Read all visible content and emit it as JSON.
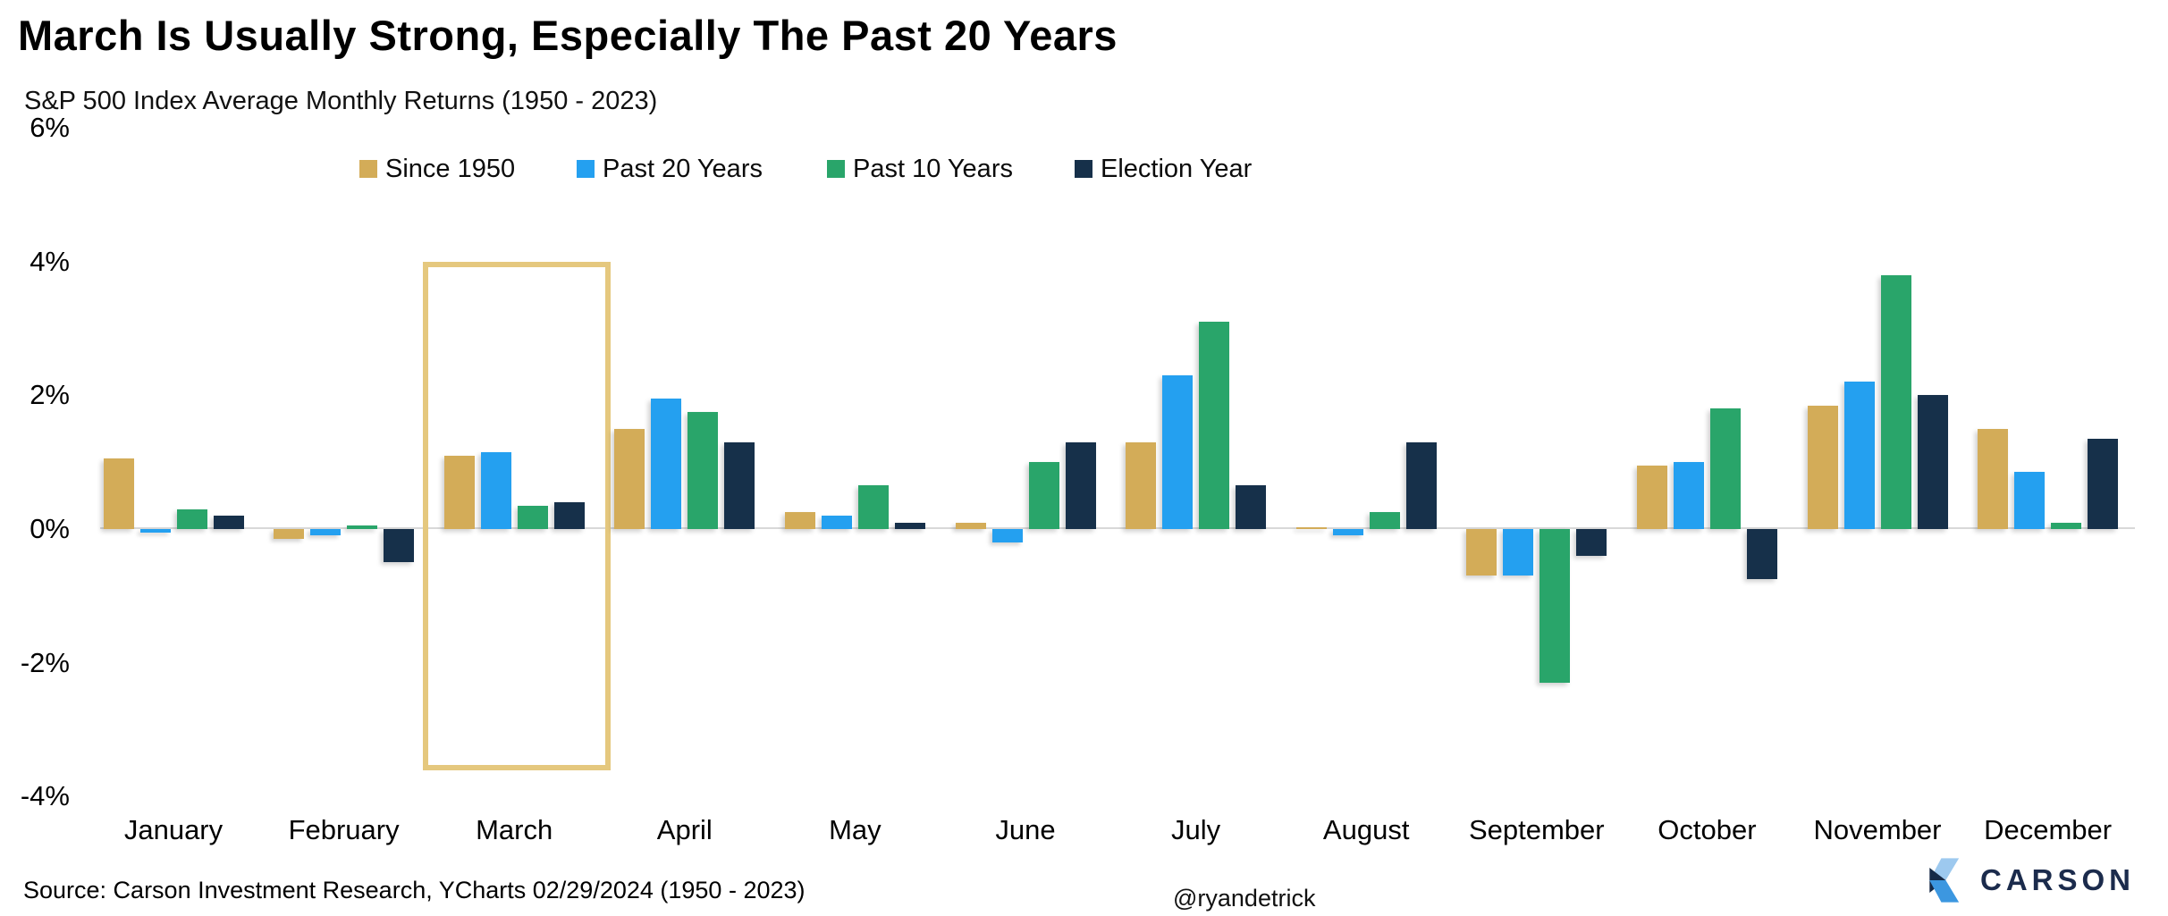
{
  "title": "March Is Usually Strong, Especially The Past 20 Years",
  "subtitle": "S&P 500 Index Average Monthly Returns (1950 - 2023)",
  "source": "Source: Carson Investment Research, YCharts 02/29/2024 (1950 - 2023)",
  "handle": "@ryandetrick",
  "logo": {
    "text": "CARSON",
    "text_color": "#1b2b4c",
    "icon_colors": {
      "light_blue": "#9dc9ef",
      "navy": "#152a47",
      "blue": "#3c97e0"
    }
  },
  "colors": {
    "since_1950": "#d3ac58",
    "past_20_years": "#24a0f0",
    "past_10_years": "#29a56a",
    "election_year": "#16304a",
    "highlight_border": "#e5c87e",
    "zero_line": "#d8d8d8"
  },
  "chart_data": {
    "type": "bar",
    "title": "March Is Usually Strong, Especially The Past 20 Years",
    "subtitle": "S&P 500 Index Average Monthly Returns (1950 - 2023)",
    "categories": [
      "January",
      "February",
      "March",
      "April",
      "May",
      "June",
      "July",
      "August",
      "September",
      "October",
      "November",
      "December"
    ],
    "series": [
      {
        "name": "Since 1950",
        "color": "#d3ac58",
        "values": [
          1.05,
          -0.15,
          1.1,
          1.5,
          0.25,
          0.1,
          1.3,
          0.0,
          -0.7,
          0.95,
          1.85,
          1.5
        ]
      },
      {
        "name": "Past 20 Years",
        "color": "#24a0f0",
        "values": [
          -0.05,
          -0.1,
          1.15,
          1.95,
          0.2,
          -0.2,
          2.3,
          -0.1,
          -0.7,
          1.0,
          2.2,
          0.85
        ]
      },
      {
        "name": "Past 10 Years",
        "color": "#29a56a",
        "values": [
          0.3,
          0.05,
          0.35,
          1.75,
          0.65,
          1.0,
          3.1,
          0.25,
          -2.3,
          1.8,
          3.8,
          0.1
        ]
      },
      {
        "name": "Election Year",
        "color": "#16304a",
        "values": [
          0.2,
          -0.5,
          0.4,
          1.3,
          0.1,
          1.3,
          0.65,
          1.3,
          -0.4,
          -0.75,
          2.0,
          1.35
        ]
      }
    ],
    "ytick_labels": [
      "6%",
      "4%",
      "2%",
      "0%",
      "-2%",
      "-4%"
    ],
    "ytick_values": [
      6,
      4,
      2,
      0,
      -2,
      -4
    ],
    "ylim": [
      -4.6,
      6
    ],
    "xlabel": "",
    "ylabel": "",
    "grid": "zero-line-only",
    "legend_position": "top",
    "highlight": {
      "category": "March",
      "from_pct": 4.0,
      "to_pct": -3.45,
      "border_color": "#e5c87e"
    }
  }
}
